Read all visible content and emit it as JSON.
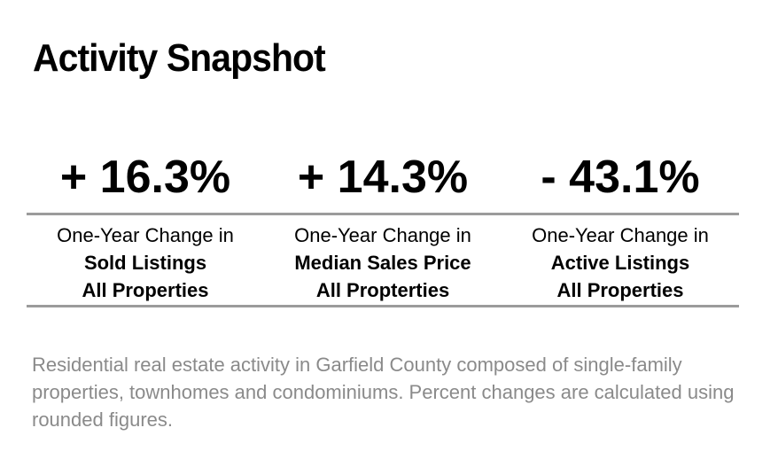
{
  "page": {
    "title": "Activity Snapshot"
  },
  "metrics": [
    {
      "value": "+ 16.3%",
      "caption": "One-Year Change in",
      "metric": "Sold Listings",
      "scope": "All Properties"
    },
    {
      "value": "+ 14.3%",
      "caption": "One-Year Change in",
      "metric": "Median Sales Price",
      "scope": "All Propterties"
    },
    {
      "value": "- 43.1%",
      "caption": "One-Year Change in",
      "metric": "Active Listings",
      "scope": "All Properties"
    }
  ],
  "footnote": "Residential real estate activity in Garfield County composed of single-family properties, townhomes and condominiums. Percent changes are calculated using rounded figures.",
  "colors": {
    "text": "#000000",
    "rule": "#9b9b9b",
    "footnote": "#8a8a8a",
    "background": "#ffffff"
  }
}
